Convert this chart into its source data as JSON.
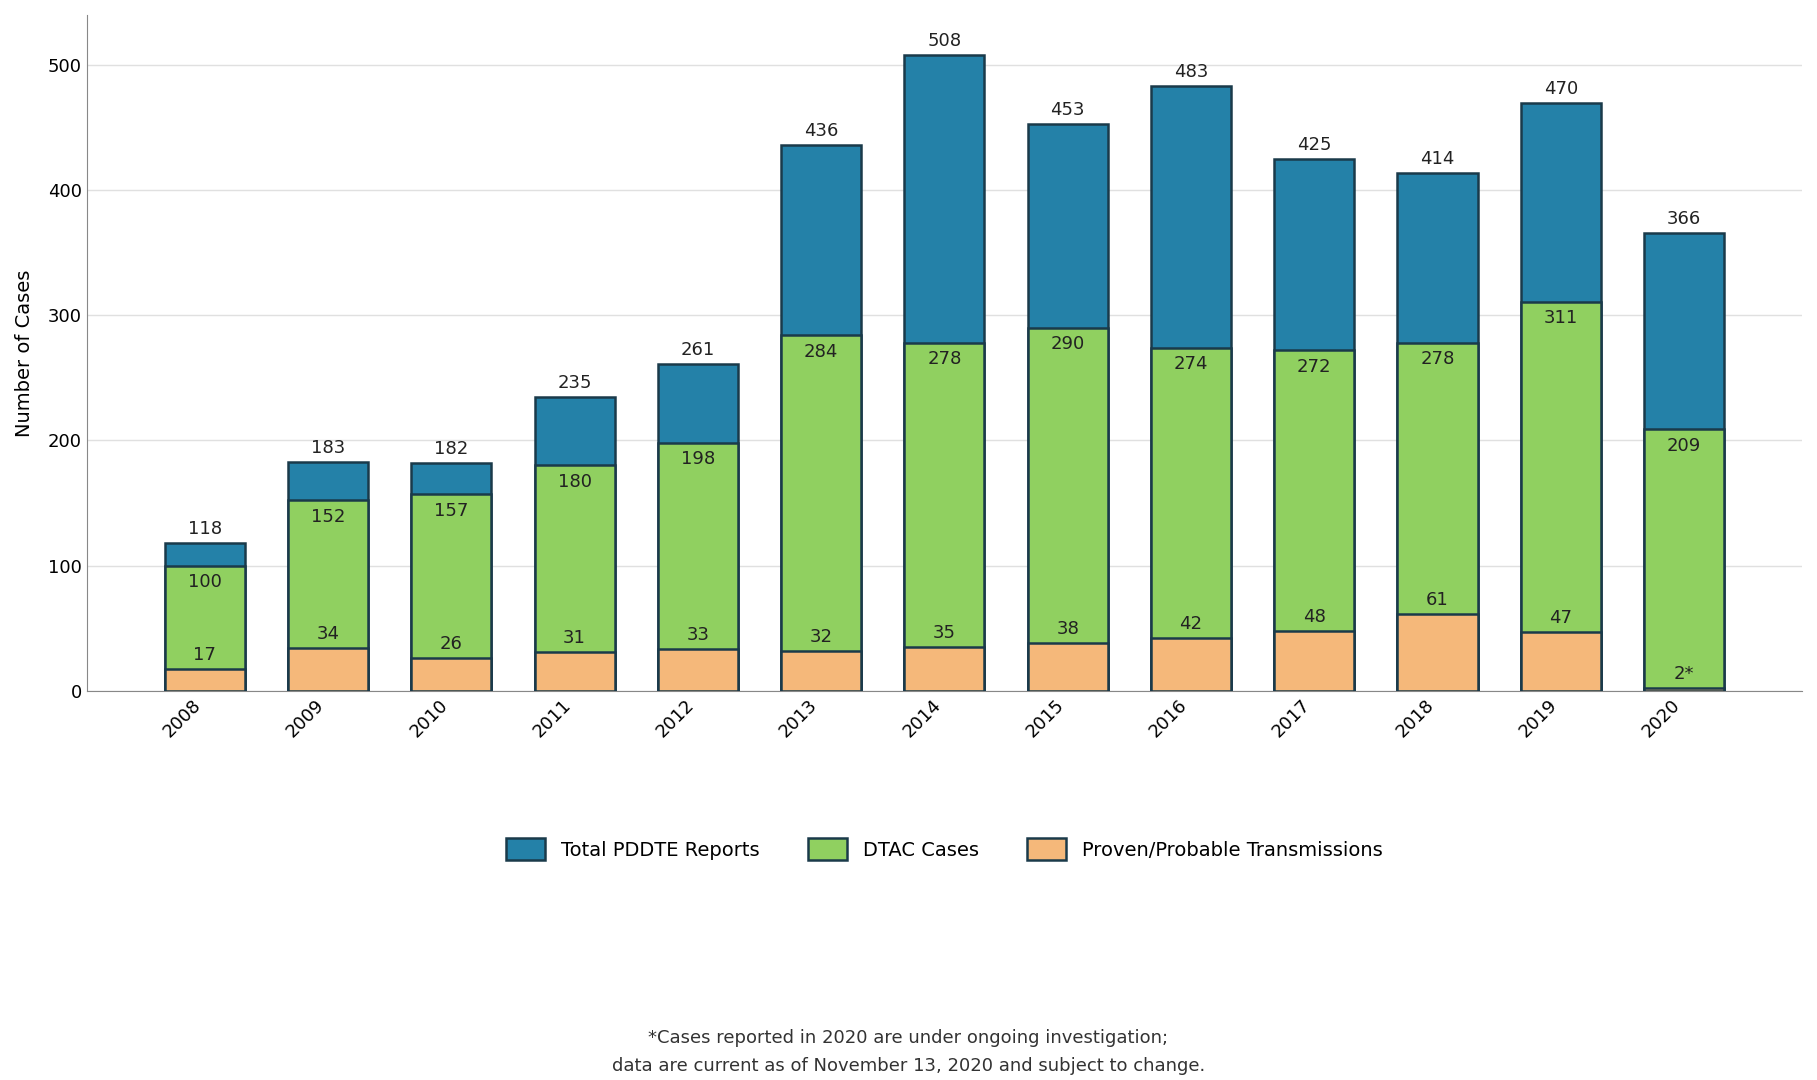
{
  "years": [
    "2008",
    "2009",
    "2010",
    "2011",
    "2012",
    "2013",
    "2014",
    "2015",
    "2016",
    "2017",
    "2018",
    "2019",
    "2020"
  ],
  "total_pddte": [
    118,
    183,
    182,
    235,
    261,
    436,
    508,
    453,
    483,
    425,
    414,
    470,
    366
  ],
  "dtac_cases": [
    100,
    152,
    157,
    180,
    198,
    284,
    278,
    290,
    274,
    272,
    278,
    311,
    209
  ],
  "proven_probable": [
    17,
    34,
    26,
    31,
    33,
    32,
    35,
    38,
    42,
    48,
    61,
    47,
    2
  ],
  "proven_probable_labels": [
    "17",
    "34",
    "26",
    "31",
    "33",
    "32",
    "35",
    "38",
    "42",
    "48",
    "61",
    "47",
    "2*"
  ],
  "color_blue": "#2481a8",
  "color_green": "#90d060",
  "color_orange": "#f5b87a",
  "color_border": "#1a3a4a",
  "ylabel": "Number of Cases",
  "ylim": [
    0,
    540
  ],
  "yticks": [
    0,
    100,
    200,
    300,
    400,
    500
  ],
  "legend_labels": [
    "Total PDDTE Reports",
    "DTAC Cases",
    "Proven/Probable Transmissions"
  ],
  "footnote": "*Cases reported in 2020 are under ongoing investigation;\ndata are current as of November 13, 2020 and subject to change.",
  "background_color": "#ffffff",
  "grid_color": "#e0e0e0",
  "bar_width": 0.65,
  "label_fontsize": 14,
  "tick_fontsize": 13,
  "annot_fontsize": 13,
  "legend_fontsize": 14,
  "footnote_fontsize": 13
}
